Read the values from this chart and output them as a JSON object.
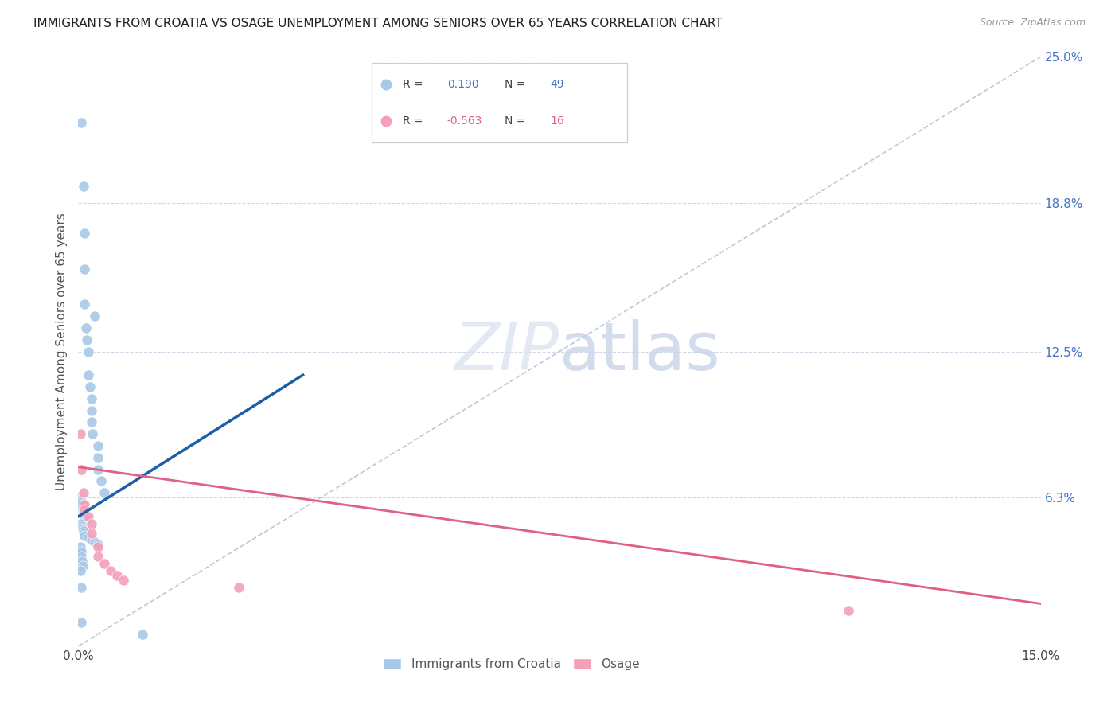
{
  "title": "IMMIGRANTS FROM CROATIA VS OSAGE UNEMPLOYMENT AMONG SENIORS OVER 65 YEARS CORRELATION CHART",
  "source": "Source: ZipAtlas.com",
  "ylabel": "Unemployment Among Seniors over 65 years",
  "xlim": [
    0.0,
    0.15
  ],
  "ylim": [
    0.0,
    0.25
  ],
  "ytick_right": [
    0.0,
    0.063,
    0.125,
    0.188,
    0.25
  ],
  "ytick_right_labels": [
    "",
    "6.3%",
    "12.5%",
    "18.8%",
    "25.0%"
  ],
  "blue_color": "#a8c8e8",
  "pink_color": "#f4a0b8",
  "blue_line_color": "#1a5fa8",
  "pink_line_color": "#e06080",
  "ref_line_color": "#c0c8d8",
  "watermark_zip": "ZIP",
  "watermark_atlas": "atlas",
  "croatia_x": [
    0.0005,
    0.0008,
    0.001,
    0.001,
    0.001,
    0.0012,
    0.0013,
    0.0015,
    0.0016,
    0.0018,
    0.002,
    0.002,
    0.002,
    0.0022,
    0.0025,
    0.003,
    0.003,
    0.003,
    0.0035,
    0.004,
    0.0003,
    0.0004,
    0.0005,
    0.0006,
    0.0007,
    0.0008,
    0.0009,
    0.001,
    0.001,
    0.0012,
    0.0005,
    0.0006,
    0.0007,
    0.0008,
    0.001,
    0.001,
    0.0015,
    0.002,
    0.0025,
    0.003,
    0.0003,
    0.0004,
    0.0005,
    0.0006,
    0.0007,
    0.0003,
    0.0004,
    0.0005,
    0.01
  ],
  "croatia_y": [
    0.222,
    0.195,
    0.175,
    0.16,
    0.145,
    0.135,
    0.13,
    0.125,
    0.115,
    0.11,
    0.105,
    0.1,
    0.095,
    0.09,
    0.14,
    0.085,
    0.08,
    0.075,
    0.07,
    0.065,
    0.063,
    0.062,
    0.061,
    0.06,
    0.058,
    0.057,
    0.056,
    0.055,
    0.054,
    0.053,
    0.052,
    0.051,
    0.05,
    0.049,
    0.048,
    0.047,
    0.046,
    0.045,
    0.044,
    0.043,
    0.042,
    0.04,
    0.038,
    0.036,
    0.034,
    0.032,
    0.025,
    0.01,
    0.005
  ],
  "osage_x": [
    0.0003,
    0.0005,
    0.0008,
    0.001,
    0.001,
    0.0015,
    0.002,
    0.002,
    0.003,
    0.003,
    0.004,
    0.005,
    0.006,
    0.025,
    0.12,
    0.007
  ],
  "osage_y": [
    0.09,
    0.075,
    0.065,
    0.06,
    0.058,
    0.055,
    0.052,
    0.048,
    0.042,
    0.038,
    0.035,
    0.032,
    0.03,
    0.025,
    0.015,
    0.028
  ],
  "blue_line_x": [
    0.0,
    0.035
  ],
  "blue_line_y": [
    0.055,
    0.115
  ],
  "pink_line_x": [
    0.0,
    0.15
  ],
  "pink_line_y": [
    0.076,
    0.018
  ]
}
